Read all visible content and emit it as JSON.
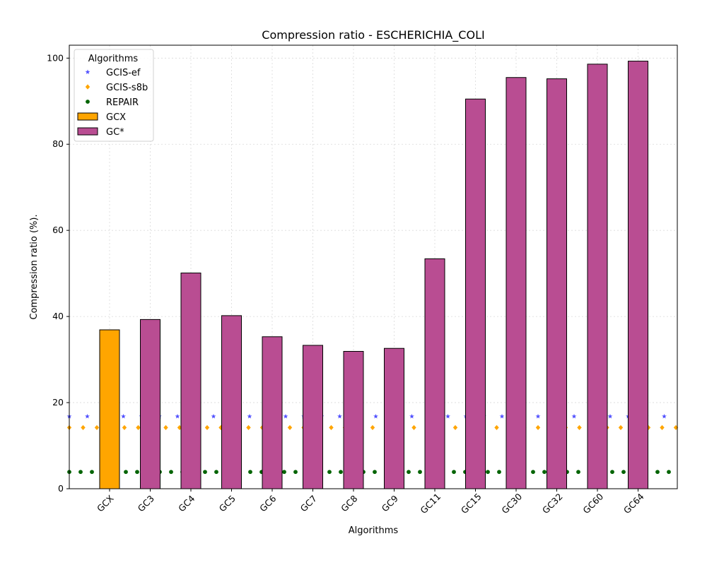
{
  "chart_data": {
    "type": "bar",
    "title": "Compression ratio -  ESCHERICHIA_COLI",
    "xlabel": "Algorithms",
    "ylabel": "Compression ratio (%).",
    "ylim": [
      0,
      103
    ],
    "yticks": [
      0,
      20,
      40,
      60,
      80,
      100
    ],
    "categories": [
      "GCX",
      "GC3",
      "GC4",
      "GC5",
      "GC6",
      "GC7",
      "GC8",
      "GC9",
      "GC11",
      "GC15",
      "GC30",
      "GC32",
      "GC60",
      "GC64"
    ],
    "series": [
      {
        "name": "GCX",
        "color": "#ffa500",
        "values": [
          36.9,
          null,
          null,
          null,
          null,
          null,
          null,
          null,
          null,
          null,
          null,
          null,
          null,
          null
        ]
      },
      {
        "name": "GC*",
        "color": "#b94d92",
        "values": [
          null,
          39.3,
          50.1,
          40.2,
          35.3,
          33.3,
          31.9,
          32.6,
          53.4,
          90.5,
          95.5,
          95.2,
          98.6,
          99.3
        ]
      }
    ],
    "reference_lines": [
      {
        "name": "GCIS-ef",
        "value": 16.8,
        "color": "#3333ff",
        "marker": "star"
      },
      {
        "name": "GCIS-s8b",
        "value": 14.2,
        "color": "#ffa500",
        "marker": "diamond"
      },
      {
        "name": "REPAIR",
        "value": 3.9,
        "color": "#006400",
        "marker": "circle"
      }
    ],
    "legend": {
      "title": "Algorithms",
      "placement": "top-left",
      "entries": [
        "GCIS-ef",
        "GCIS-s8b",
        "REPAIR",
        "GCX",
        "GC*"
      ]
    },
    "grid": true
  }
}
